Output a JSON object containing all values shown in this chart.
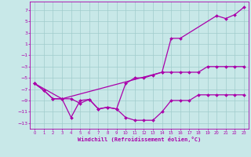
{
  "xlabel": "Windchill (Refroidissement éolien,°C)",
  "xlim": [
    -0.5,
    23.5
  ],
  "ylim": [
    -14,
    8.5
  ],
  "yticks": [
    7,
    5,
    3,
    1,
    -1,
    -3,
    -5,
    -7,
    -9,
    -11,
    -13
  ],
  "xticks": [
    0,
    1,
    2,
    3,
    4,
    5,
    6,
    7,
    8,
    9,
    10,
    11,
    12,
    13,
    14,
    15,
    16,
    17,
    18,
    19,
    20,
    21,
    22,
    23
  ],
  "bg_color": "#c8e8e8",
  "line_color": "#aa00aa",
  "grid_color": "#a0cccc",
  "series": [
    {
      "x": [
        0,
        1,
        2,
        3,
        4,
        5,
        6,
        7,
        8,
        9,
        10,
        11,
        12,
        13,
        14,
        15,
        16,
        17,
        18,
        19,
        20,
        21,
        22,
        23
      ],
      "y": [
        -6.0,
        -7.2,
        -8.7,
        -8.7,
        -8.7,
        -9.5,
        -8.8,
        -10.5,
        -10.2,
        -10.5,
        -12.0,
        -12.5,
        -12.5,
        -12.5,
        -11.0,
        -9.0,
        -9.0,
        -9.0,
        -8.0,
        -8.0,
        -8.0,
        -8.0,
        -8.0,
        -8.0
      ]
    },
    {
      "x": [
        0,
        1,
        2,
        3,
        4,
        5,
        6,
        7,
        8,
        9,
        10,
        11,
        12,
        13,
        14,
        15,
        16,
        17,
        18,
        19,
        20,
        21,
        22,
        23
      ],
      "y": [
        -6.0,
        -7.2,
        -8.7,
        -8.7,
        -12.0,
        -9.0,
        -8.8,
        -10.5,
        -10.2,
        -10.5,
        -6.0,
        -5.0,
        -5.0,
        -4.5,
        -4.0,
        -4.0,
        -4.0,
        -4.0,
        -4.0,
        -3.0,
        -3.0,
        -3.0,
        -3.0,
        -3.0
      ]
    },
    {
      "x": [
        0,
        3,
        14,
        15,
        16,
        20,
        21,
        22,
        23
      ],
      "y": [
        -6.0,
        -8.7,
        -4.0,
        2.0,
        2.0,
        6.0,
        5.5,
        6.2,
        7.5
      ]
    }
  ]
}
